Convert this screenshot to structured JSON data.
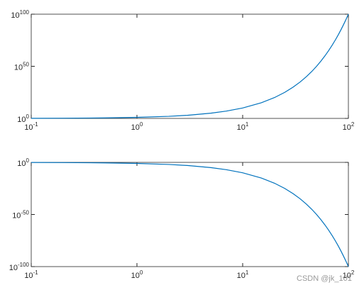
{
  "chart_data": [
    {
      "type": "line",
      "xscale": "log",
      "yscale": "log",
      "xlim": [
        0.1,
        100
      ],
      "ylim": [
        1,
        1e+100
      ],
      "xticks": [
        {
          "value": 0.1,
          "label": "10^-1"
        },
        {
          "value": 1,
          "label": "10^0"
        },
        {
          "value": 10,
          "label": "10^1"
        },
        {
          "value": 100,
          "label": "10^2"
        }
      ],
      "yticks": [
        {
          "value": 1,
          "label": "10^0"
        },
        {
          "value": 1e+50,
          "label": "10^50"
        },
        {
          "value": 1e+100,
          "label": "10^100"
        }
      ],
      "x": [
        0.1,
        0.2,
        0.5,
        1,
        2,
        3,
        5,
        7,
        10,
        15,
        20,
        25,
        30,
        35,
        40,
        45,
        50,
        55,
        60,
        65,
        70,
        75,
        80,
        85,
        90,
        95,
        100
      ],
      "series": [
        {
          "color": "#0072bd",
          "values": [
            1.2589,
            1.5849,
            3.1623,
            10,
            100,
            1000,
            100000.0,
            10000000.0,
            10000000000.0,
            1000000000000000.0,
            1e+20,
            1e+25,
            1e+30,
            1e+35,
            1e+40,
            1e+45,
            1e+50,
            1e+55,
            1e+60,
            1e+65,
            1e+70,
            1e+75,
            1e+80,
            1e+85,
            1e+90,
            1e+95,
            1e+100
          ]
        }
      ]
    },
    {
      "type": "line",
      "xscale": "log",
      "yscale": "log",
      "xlim": [
        0.1,
        100
      ],
      "ylim": [
        1e-100,
        1
      ],
      "xticks": [
        {
          "value": 0.1,
          "label": "10^-1"
        },
        {
          "value": 1,
          "label": "10^0"
        },
        {
          "value": 10,
          "label": "10^1"
        },
        {
          "value": 100,
          "label": "10^2"
        }
      ],
      "yticks": [
        {
          "value": 1e-100,
          "label": "10^-100"
        },
        {
          "value": 1e-50,
          "label": "10^-50"
        },
        {
          "value": 1,
          "label": "10^0"
        }
      ],
      "x": [
        0.1,
        0.2,
        0.5,
        1,
        2,
        3,
        5,
        7,
        10,
        15,
        20,
        25,
        30,
        35,
        40,
        45,
        50,
        55,
        60,
        65,
        70,
        75,
        80,
        85,
        90,
        95,
        100
      ],
      "series": [
        {
          "color": "#0072bd",
          "values": [
            0.7943,
            0.631,
            0.3162,
            0.1,
            0.01,
            0.001,
            1e-05,
            1e-07,
            1e-10,
            1e-15,
            1e-20,
            1e-25,
            1e-30,
            1e-35,
            1e-40,
            1e-45,
            1e-50,
            1e-55,
            1e-60,
            1e-65,
            1e-70,
            1e-75,
            1e-80,
            1e-85,
            1e-90,
            1e-95,
            1e-100
          ]
        }
      ]
    }
  ],
  "watermark": "CSDN @jk_101"
}
